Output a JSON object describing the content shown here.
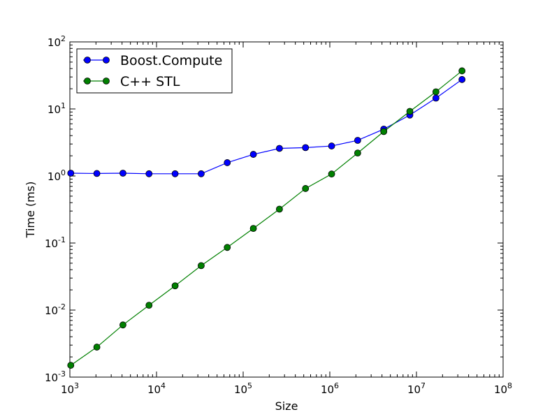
{
  "chart_data": {
    "type": "line",
    "title": "",
    "xlabel": "Size",
    "ylabel": "Time (ms)",
    "x_scale": "log",
    "y_scale": "log",
    "xlim": [
      1000,
      100000000
    ],
    "ylim": [
      0.001,
      100
    ],
    "grid": false,
    "legend_position": "top-left",
    "x_ticks": [
      {
        "base": "10",
        "exp": "3",
        "value": 1000
      },
      {
        "base": "10",
        "exp": "4",
        "value": 10000
      },
      {
        "base": "10",
        "exp": "5",
        "value": 100000
      },
      {
        "base": "10",
        "exp": "6",
        "value": 1000000
      },
      {
        "base": "10",
        "exp": "7",
        "value": 10000000
      },
      {
        "base": "10",
        "exp": "8",
        "value": 100000000
      }
    ],
    "y_ticks": [
      {
        "base": "10",
        "exp": "-3",
        "value": 0.001
      },
      {
        "base": "10",
        "exp": "-2",
        "value": 0.01
      },
      {
        "base": "10",
        "exp": "-1",
        "value": 0.1
      },
      {
        "base": "10",
        "exp": "0",
        "value": 1
      },
      {
        "base": "10",
        "exp": "1",
        "value": 10
      },
      {
        "base": "10",
        "exp": "2",
        "value": 100
      }
    ],
    "x": [
      1024,
      2048,
      4096,
      8192,
      16384,
      32768,
      65536,
      131072,
      262144,
      524288,
      1048576,
      2097152,
      4194304,
      8388608,
      16777216,
      33554432
    ],
    "series": [
      {
        "name": "Boost.Compute",
        "color": "#0000ff",
        "values": [
          1.1,
          1.09,
          1.1,
          1.08,
          1.08,
          1.08,
          1.58,
          2.1,
          2.58,
          2.65,
          2.8,
          3.4,
          5.0,
          8.1,
          14.5,
          27.5
        ]
      },
      {
        "name": "C++ STL",
        "color": "#008000",
        "values": [
          0.0015,
          0.0028,
          0.006,
          0.0118,
          0.023,
          0.046,
          0.086,
          0.165,
          0.32,
          0.65,
          1.07,
          2.2,
          4.6,
          9.2,
          18.0,
          37.0
        ]
      }
    ]
  }
}
